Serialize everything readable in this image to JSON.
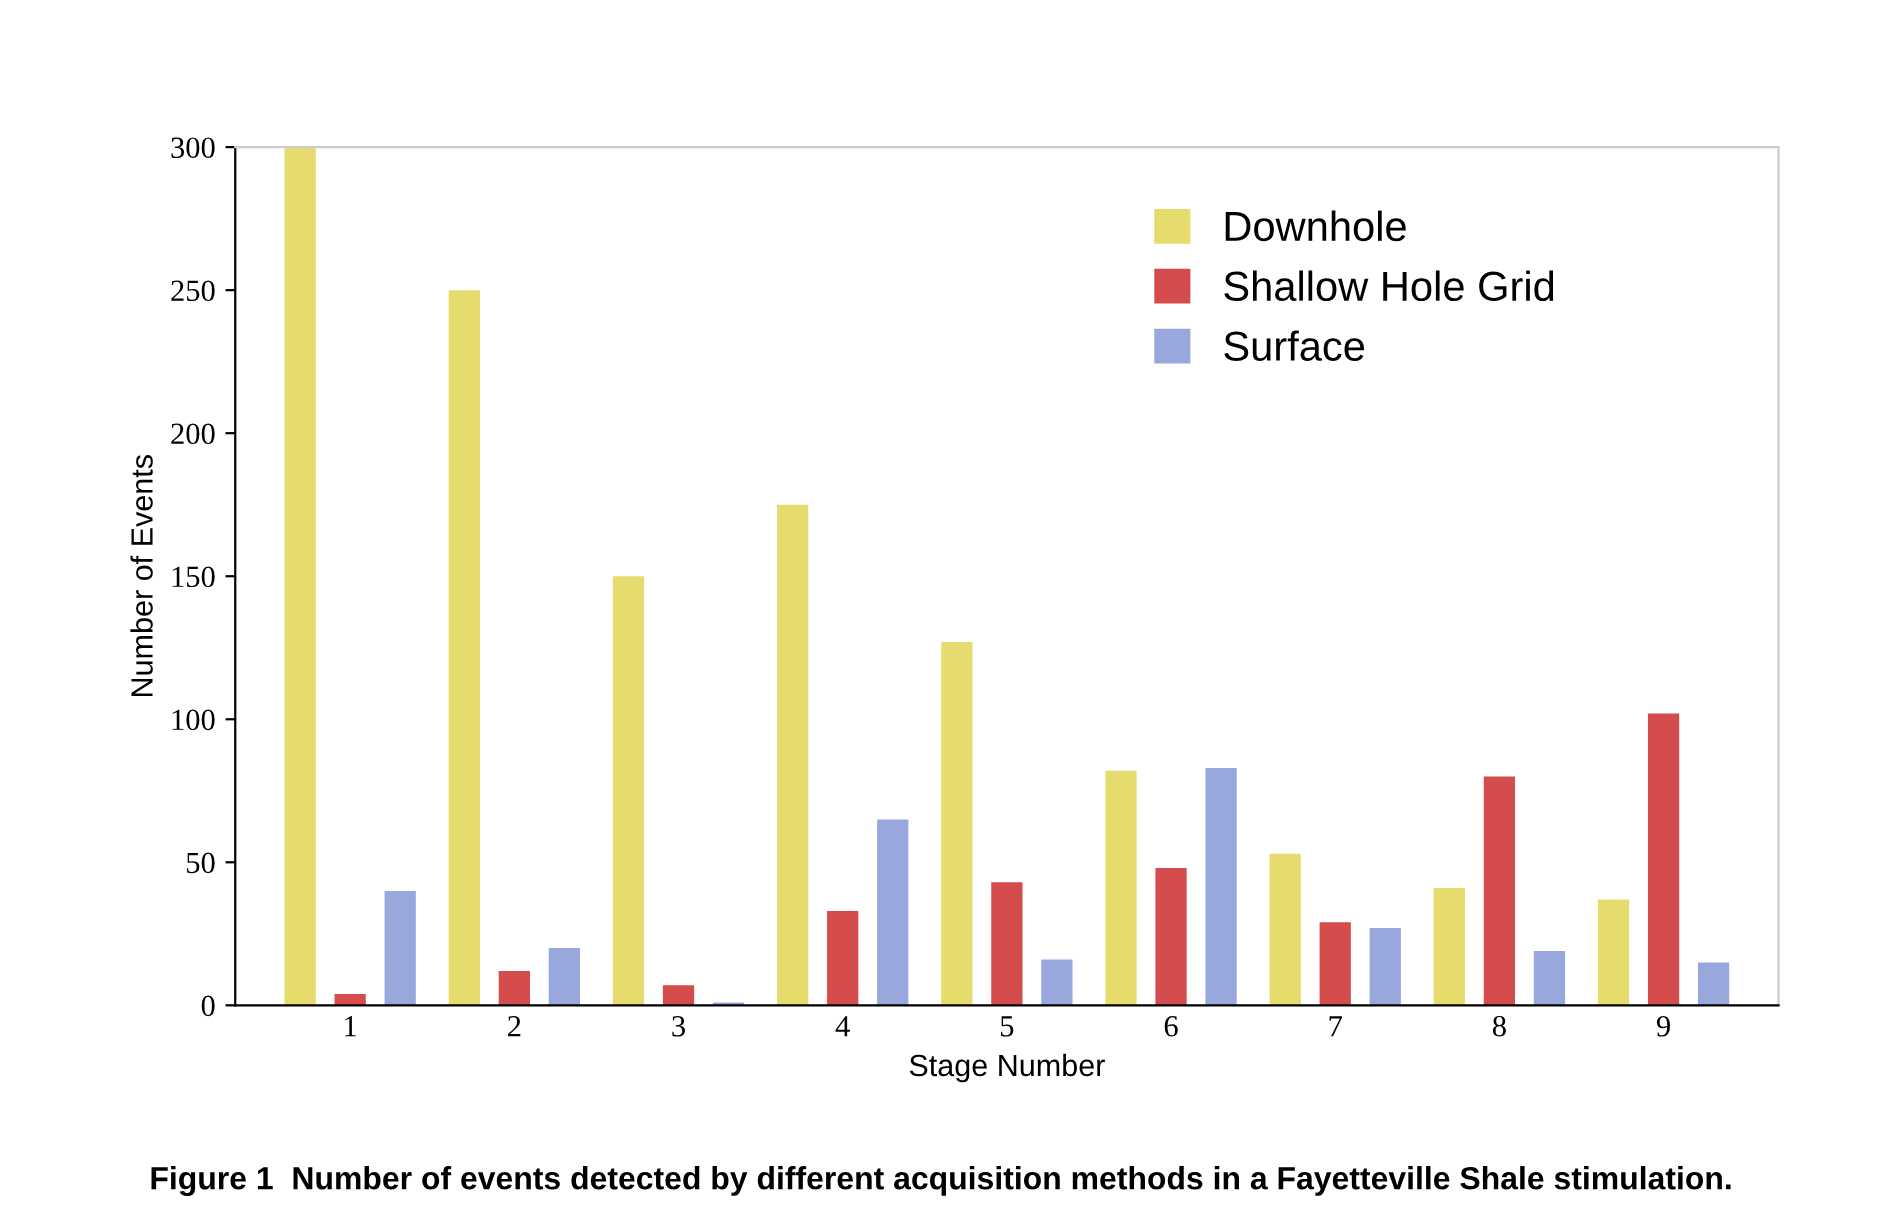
{
  "chart_data": {
    "type": "bar",
    "xlabel": "Stage Number",
    "ylabel": "Number of Events",
    "categories": [
      "1",
      "2",
      "3",
      "4",
      "5",
      "6",
      "7",
      "8",
      "9"
    ],
    "series": [
      {
        "name": "Downhole",
        "color": "#e6dc6e",
        "values": [
          300,
          250,
          150,
          175,
          127,
          82,
          53,
          41,
          37
        ]
      },
      {
        "name": "Shallow Hole Grid",
        "color": "#d44c4c",
        "values": [
          4,
          12,
          7,
          33,
          43,
          48,
          29,
          80,
          102
        ]
      },
      {
        "name": "Surface",
        "color": "#98a8dc",
        "values": [
          40,
          20,
          1,
          65,
          16,
          83,
          27,
          19,
          15
        ]
      }
    ],
    "ylim": [
      0,
      300
    ],
    "yticks": [
      0,
      50,
      100,
      150,
      200,
      250,
      300
    ],
    "grid": false,
    "legend": "top right",
    "annotations": [
      "Figure 1  Number of events detected by different acquisition methods in a Fayetteville Shale stimulation."
    ]
  }
}
